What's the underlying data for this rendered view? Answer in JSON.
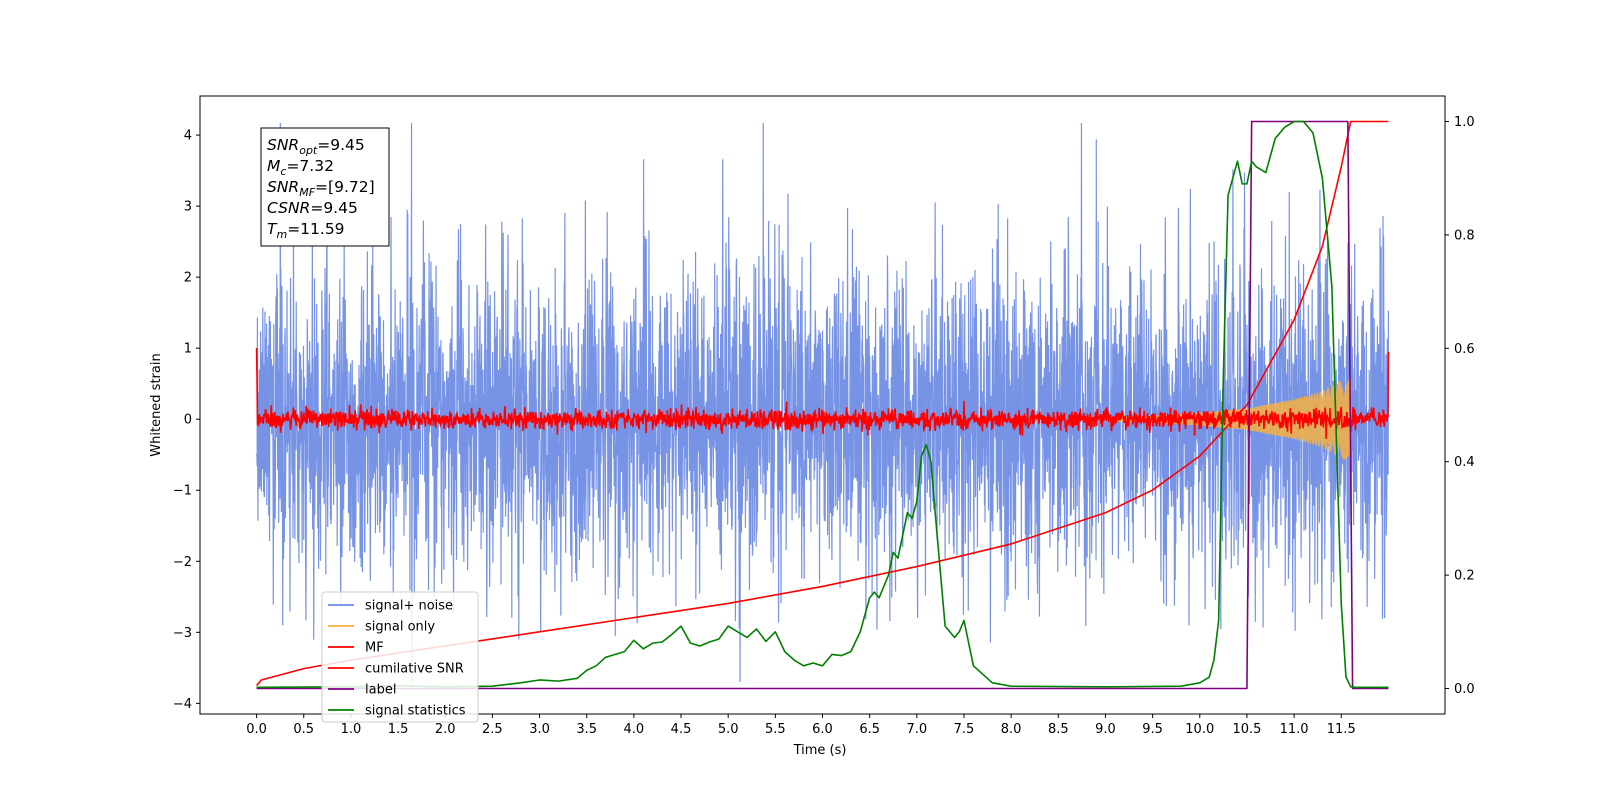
{
  "chart_data": {
    "type": "line",
    "xlabel": "Time (s)",
    "ylabel_left": "Whitened strain",
    "ylabel_right": "",
    "xlim": [
      -0.6,
      12.6
    ],
    "ylim_left": [
      -4.15,
      4.55
    ],
    "ylim_right": [
      -0.045,
      1.045
    ],
    "grid": false,
    "legend_position": "lower-left",
    "x_ticks": [
      {
        "v": 0.0,
        "label": "0.0"
      },
      {
        "v": 0.5,
        "label": "0.5"
      },
      {
        "v": 1.0,
        "label": "1.0"
      },
      {
        "v": 1.5,
        "label": "1.5"
      },
      {
        "v": 2.0,
        "label": "2.0"
      },
      {
        "v": 2.5,
        "label": "2.5"
      },
      {
        "v": 3.0,
        "label": "3.0"
      },
      {
        "v": 3.5,
        "label": "3.5"
      },
      {
        "v": 4.0,
        "label": "4.0"
      },
      {
        "v": 4.5,
        "label": "4.5"
      },
      {
        "v": 5.0,
        "label": "5.0"
      },
      {
        "v": 5.5,
        "label": "5.5"
      },
      {
        "v": 6.0,
        "label": "6.0"
      },
      {
        "v": 6.5,
        "label": "6.5"
      },
      {
        "v": 7.0,
        "label": "7.0"
      },
      {
        "v": 7.5,
        "label": "7.5"
      },
      {
        "v": 8.0,
        "label": "8.0"
      },
      {
        "v": 8.5,
        "label": "8.5"
      },
      {
        "v": 9.0,
        "label": "9.0"
      },
      {
        "v": 9.5,
        "label": "9.5"
      },
      {
        "v": 10.0,
        "label": "10.0"
      },
      {
        "v": 10.5,
        "label": "10.5"
      },
      {
        "v": 11.0,
        "label": "11.0"
      },
      {
        "v": 11.5,
        "label": "11.5"
      }
    ],
    "y_ticks_left": [
      {
        "v": 4,
        "label": "4"
      },
      {
        "v": 3,
        "label": "3"
      },
      {
        "v": 2,
        "label": "2"
      },
      {
        "v": 1,
        "label": "1"
      },
      {
        "v": 0,
        "label": "0"
      },
      {
        "v": -1,
        "label": "−1"
      },
      {
        "v": -2,
        "label": "−2"
      },
      {
        "v": -3,
        "label": "−3"
      },
      {
        "v": -4,
        "label": "−4"
      }
    ],
    "y_ticks_right": [
      {
        "v": 1.0,
        "label": "1.0"
      },
      {
        "v": 0.8,
        "label": "0.8"
      },
      {
        "v": 0.6,
        "label": "0.6"
      },
      {
        "v": 0.4,
        "label": "0.4"
      },
      {
        "v": 0.2,
        "label": "0.2"
      },
      {
        "v": 0.0,
        "label": "0.0"
      }
    ],
    "series": [
      {
        "name": "signal+ noise",
        "color": "#6b8ae4",
        "axis": "left",
        "description_values": {
          "t_start": 0.0,
          "t_end": 12.0,
          "typical_range": [
            -2.6,
            2.6
          ],
          "max_peak": 4.17,
          "min_peak": -3.7
        }
      },
      {
        "name": "signal only",
        "color": "#f5b041",
        "axis": "left",
        "envelope": {
          "t": [
            9.0,
            9.5,
            10.0,
            10.5,
            11.0,
            11.3,
            11.5,
            11.6
          ],
          "amp": [
            0.03,
            0.05,
            0.09,
            0.15,
            0.28,
            0.4,
            0.55,
            0.62
          ]
        }
      },
      {
        "name": "MF",
        "color": "#ff0000",
        "axis": "left",
        "description_values": {
          "t_start": 0.0,
          "t_end": 12.0,
          "typical_range": [
            -0.15,
            0.15
          ],
          "start_value": 1.0,
          "end_value": 0.95
        }
      },
      {
        "name": "cumilative SNR",
        "color": "#ff0000",
        "axis": "right",
        "t": [
          0.0,
          0.05,
          0.5,
          1.0,
          2.0,
          3.0,
          4.0,
          5.0,
          6.0,
          7.0,
          8.0,
          9.0,
          9.5,
          10.0,
          10.5,
          11.0,
          11.3,
          11.5,
          11.6,
          12.0
        ],
        "y": [
          0.005,
          0.015,
          0.035,
          0.05,
          0.075,
          0.1,
          0.125,
          0.15,
          0.18,
          0.215,
          0.255,
          0.31,
          0.35,
          0.41,
          0.5,
          0.65,
          0.78,
          0.92,
          1.0,
          1.0
        ]
      },
      {
        "name": "label",
        "color": "#800080",
        "axis": "right",
        "t": [
          0.0,
          10.5,
          10.55,
          11.57,
          11.62,
          12.0
        ],
        "y": [
          0.0,
          0.0,
          1.0,
          1.0,
          0.0,
          0.0
        ]
      },
      {
        "name": "signal statistics",
        "color": "#008000",
        "axis": "right",
        "t": [
          0.0,
          1.0,
          1.5,
          2.0,
          2.5,
          2.8,
          3.0,
          3.2,
          3.4,
          3.5,
          3.6,
          3.7,
          3.8,
          3.9,
          4.0,
          4.1,
          4.2,
          4.3,
          4.4,
          4.5,
          4.6,
          4.7,
          4.8,
          4.9,
          5.0,
          5.1,
          5.2,
          5.3,
          5.4,
          5.5,
          5.6,
          5.7,
          5.8,
          5.9,
          6.0,
          6.1,
          6.2,
          6.3,
          6.4,
          6.5,
          6.55,
          6.6,
          6.7,
          6.75,
          6.8,
          6.85,
          6.9,
          6.95,
          7.0,
          7.05,
          7.1,
          7.15,
          7.2,
          7.3,
          7.4,
          7.45,
          7.5,
          7.6,
          7.8,
          8.0,
          9.0,
          9.8,
          10.0,
          10.1,
          10.15,
          10.2,
          10.25,
          10.3,
          10.35,
          10.4,
          10.45,
          10.5,
          10.55,
          10.6,
          10.7,
          10.8,
          10.9,
          11.0,
          11.1,
          11.2,
          11.3,
          11.4,
          11.5,
          11.55,
          11.6,
          11.65,
          11.7,
          11.8,
          11.9,
          12.0
        ],
        "y": [
          0.002,
          0.003,
          0.005,
          0.003,
          0.004,
          0.01,
          0.015,
          0.013,
          0.018,
          0.032,
          0.04,
          0.055,
          0.06,
          0.065,
          0.085,
          0.07,
          0.08,
          0.082,
          0.095,
          0.11,
          0.08,
          0.075,
          0.082,
          0.087,
          0.11,
          0.1,
          0.09,
          0.105,
          0.083,
          0.1,
          0.065,
          0.05,
          0.04,
          0.045,
          0.04,
          0.06,
          0.058,
          0.065,
          0.1,
          0.16,
          0.17,
          0.16,
          0.2,
          0.24,
          0.23,
          0.27,
          0.31,
          0.3,
          0.33,
          0.41,
          0.43,
          0.4,
          0.3,
          0.11,
          0.09,
          0.1,
          0.12,
          0.04,
          0.01,
          0.004,
          0.003,
          0.004,
          0.01,
          0.02,
          0.05,
          0.12,
          0.55,
          0.87,
          0.9,
          0.93,
          0.89,
          0.89,
          0.93,
          0.92,
          0.91,
          0.97,
          0.99,
          1.0,
          1.0,
          0.98,
          0.9,
          0.71,
          0.15,
          0.02,
          0.003,
          0.002,
          0.002,
          0.002,
          0.002,
          0.002
        ]
      }
    ]
  },
  "annotation": {
    "lines": [
      {
        "main": "SNR",
        "sub": "opt",
        "rest": "=9.45"
      },
      {
        "main": "M",
        "sub": "c",
        "rest": "=7.32"
      },
      {
        "main": "SNR",
        "sub": "MF",
        "rest": "=[9.72]"
      },
      {
        "main": "CSNR",
        "sub": "",
        "rest": "=9.45"
      },
      {
        "main": "T",
        "sub": "m",
        "rest": "=11.59"
      }
    ]
  },
  "legend": {
    "items": [
      {
        "label": "signal+ noise",
        "color": "#6b8ae4"
      },
      {
        "label": "signal only",
        "color": "#f5b041"
      },
      {
        "label": "MF",
        "color": "#ff0000"
      },
      {
        "label": "cumilative SNR",
        "color": "#ff0000"
      },
      {
        "label": "label",
        "color": "#800080"
      },
      {
        "label": "signal statistics",
        "color": "#008000"
      }
    ]
  }
}
